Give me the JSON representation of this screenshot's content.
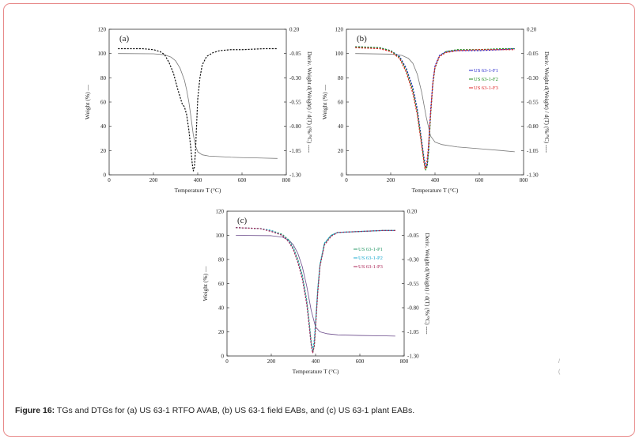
{
  "caption": {
    "label": "Figure 16:",
    "text": " TGs and DTGs for (a) US 63-1 RTFO AVAB, (b) US 63-1 field EABs, and (c) US 63-1 plant EABs."
  },
  "chart_data": [
    {
      "type": "line",
      "panel_label": "(a)",
      "xlabel": "Temperature T (°C)",
      "ylabel": "Weight (%) —",
      "y2label": "Deriv. Weight d(Weight) / d(T) (%/°C) ----",
      "xlim": [
        0,
        800
      ],
      "ylim": [
        0,
        120
      ],
      "y2lim": [
        -1.3,
        0.2
      ],
      "xticks": [
        "0",
        "200",
        "400",
        "600",
        "800"
      ],
      "yticks": [
        "0",
        "20",
        "40",
        "60",
        "80",
        "100",
        "120"
      ],
      "y2ticks": [
        "0.20",
        "-0.05",
        "-0.30",
        "-0.55",
        "-0.80",
        "-1.05",
        "-1.30"
      ],
      "series": [
        {
          "kind": "tg",
          "color": "#777777",
          "x": [
            40,
            200,
            250,
            280,
            300,
            320,
            340,
            350,
            360,
            370,
            380,
            390,
            400,
            420,
            450,
            500,
            550,
            600,
            650,
            700,
            760
          ],
          "y": [
            100,
            99.8,
            99,
            97,
            94,
            88,
            78,
            70,
            60,
            47,
            33,
            24,
            19,
            16.5,
            15.5,
            15,
            14.5,
            14.2,
            14,
            13.8,
            13.5
          ]
        },
        {
          "kind": "dtg",
          "color": "#111111",
          "x": [
            40,
            150,
            200,
            230,
            250,
            270,
            290,
            310,
            330,
            340,
            350,
            360,
            370,
            375,
            380,
            385,
            390,
            395,
            400,
            410,
            420,
            440,
            470,
            500,
            550,
            600,
            700,
            760
          ],
          "y": [
            0.0,
            0.0,
            -0.01,
            -0.03,
            -0.06,
            -0.14,
            -0.25,
            -0.42,
            -0.57,
            -0.6,
            -0.68,
            -0.84,
            -1.05,
            -1.18,
            -1.26,
            -1.22,
            -1.05,
            -0.78,
            -0.52,
            -0.3,
            -0.17,
            -0.08,
            -0.04,
            -0.02,
            -0.01,
            -0.01,
            0.0,
            0.0
          ]
        }
      ]
    },
    {
      "type": "line",
      "panel_label": "(b)",
      "xlabel": "Temperature T (°C)",
      "ylabel": "Weight (%) —",
      "y2label": "Deriv. Weight d(Weight) / d(T) (%/°C) ----",
      "xlim": [
        0,
        800
      ],
      "ylim": [
        0,
        120
      ],
      "y2lim": [
        -1.3,
        0.2
      ],
      "xticks": [
        "0",
        "200",
        "400",
        "600",
        "800"
      ],
      "yticks": [
        "0",
        "20",
        "40",
        "60",
        "80",
        "100",
        "120"
      ],
      "y2ticks": [
        "0.20",
        "-0.05",
        "-0.30",
        "-0.55",
        "-0.80",
        "-1.05",
        "-1.30"
      ],
      "legend": [
        "US 63-1-F1",
        "US 63-1-F2",
        "US 63-1-F3"
      ],
      "series": [
        {
          "kind": "tg",
          "color": "#777777",
          "x": [
            40,
            200,
            250,
            280,
            300,
            320,
            340,
            360,
            380,
            400,
            430,
            500,
            600,
            700,
            760
          ],
          "y": [
            100,
            99.5,
            98.5,
            96,
            92,
            83,
            68,
            48,
            32,
            27,
            25,
            23,
            21.5,
            20,
            19
          ]
        },
        {
          "kind": "dtg",
          "name": "US 63-1-F1",
          "color": "#2222cc",
          "x": [
            40,
            150,
            200,
            240,
            270,
            300,
            320,
            340,
            350,
            360,
            365,
            370,
            380,
            390,
            400,
            420,
            450,
            500,
            600,
            700,
            760
          ],
          "y": [
            0.02,
            0.01,
            -0.02,
            -0.08,
            -0.2,
            -0.4,
            -0.62,
            -0.95,
            -1.12,
            -1.22,
            -1.2,
            -1.05,
            -0.65,
            -0.35,
            -0.18,
            -0.07,
            -0.03,
            -0.02,
            -0.02,
            -0.01,
            0.0
          ]
        },
        {
          "kind": "dtg",
          "name": "US 63-1-F2",
          "color": "#1a8a1a",
          "x": [
            40,
            150,
            200,
            240,
            270,
            300,
            320,
            340,
            350,
            358,
            365,
            372,
            380,
            390,
            400,
            420,
            450,
            500,
            600,
            700,
            760
          ],
          "y": [
            0.02,
            0.01,
            -0.02,
            -0.09,
            -0.22,
            -0.43,
            -0.65,
            -0.98,
            -1.15,
            -1.25,
            -1.21,
            -1.05,
            -0.7,
            -0.38,
            -0.2,
            -0.08,
            -0.03,
            -0.01,
            -0.01,
            0.0,
            0.0
          ]
        },
        {
          "kind": "dtg",
          "name": "US 63-1-F3",
          "color": "#dd2222",
          "x": [
            40,
            150,
            200,
            240,
            270,
            300,
            320,
            340,
            350,
            355,
            362,
            370,
            380,
            390,
            400,
            420,
            450,
            500,
            600,
            700,
            760
          ],
          "y": [
            0.01,
            0.0,
            -0.03,
            -0.1,
            -0.24,
            -0.46,
            -0.68,
            -1.0,
            -1.17,
            -1.24,
            -1.2,
            -1.02,
            -0.67,
            -0.36,
            -0.19,
            -0.08,
            -0.04,
            -0.02,
            -0.01,
            -0.01,
            -0.01
          ]
        }
      ]
    },
    {
      "type": "line",
      "panel_label": "(c)",
      "xlabel": "Temperature T (°C)",
      "ylabel": "Weight (%) —",
      "y2label": "Deriv. Weight d(Weight) / d(T) (%/°C) ----",
      "xlim": [
        0,
        800
      ],
      "ylim": [
        0,
        120
      ],
      "y2lim": [
        -1.3,
        0.2
      ],
      "xticks": [
        "0",
        "200",
        "400",
        "600",
        "800"
      ],
      "yticks": [
        "0",
        "20",
        "40",
        "60",
        "80",
        "100",
        "120"
      ],
      "y2ticks": [
        "0.20",
        "-0.05",
        "-0.30",
        "-0.55",
        "-0.80",
        "-1.05",
        "-1.30"
      ],
      "legend": [
        "US 63-1-P1",
        "US 63-1-P2",
        "US 63-1-P3"
      ],
      "series": [
        {
          "kind": "tg",
          "color": "#6a4a8a",
          "x": [
            40,
            200,
            250,
            280,
            300,
            320,
            340,
            360,
            380,
            400,
            420,
            450,
            500,
            600,
            700,
            760
          ],
          "y": [
            100,
            99.7,
            98.5,
            96,
            92,
            85,
            74,
            58,
            38,
            24,
            20,
            18.5,
            17.5,
            17,
            16.7,
            16.5
          ]
        },
        {
          "kind": "dtg",
          "name": "US 63-1-P1",
          "color": "#2a9a6a",
          "x": [
            40,
            150,
            200,
            250,
            280,
            300,
            320,
            340,
            360,
            370,
            380,
            388,
            395,
            400,
            410,
            420,
            440,
            470,
            500,
            600,
            700,
            760
          ],
          "y": [
            0.03,
            0.02,
            0.0,
            -0.04,
            -0.1,
            -0.18,
            -0.3,
            -0.46,
            -0.72,
            -0.92,
            -1.15,
            -1.26,
            -1.18,
            -0.98,
            -0.62,
            -0.36,
            -0.14,
            -0.05,
            -0.02,
            -0.01,
            0.0,
            0.0
          ]
        },
        {
          "kind": "dtg",
          "name": "US 63-1-P2",
          "color": "#1aaad0",
          "x": [
            40,
            150,
            200,
            250,
            280,
            300,
            320,
            340,
            360,
            370,
            380,
            386,
            393,
            400,
            410,
            420,
            440,
            470,
            500,
            600,
            700,
            760
          ],
          "y": [
            0.03,
            0.02,
            0.0,
            -0.05,
            -0.11,
            -0.19,
            -0.32,
            -0.48,
            -0.74,
            -0.95,
            -1.17,
            -1.24,
            -1.16,
            -0.95,
            -0.6,
            -0.35,
            -0.13,
            -0.05,
            -0.02,
            -0.01,
            0.0,
            0.0
          ]
        },
        {
          "kind": "dtg",
          "name": "US 63-1-P3",
          "color": "#aa2255",
          "x": [
            40,
            150,
            200,
            250,
            280,
            300,
            320,
            340,
            360,
            370,
            380,
            387,
            394,
            400,
            410,
            420,
            440,
            470,
            500,
            600,
            700,
            760
          ],
          "y": [
            0.03,
            0.02,
            -0.01,
            -0.05,
            -0.12,
            -0.2,
            -0.33,
            -0.5,
            -0.76,
            -0.96,
            -1.18,
            -1.27,
            -1.2,
            -1.0,
            -0.64,
            -0.37,
            -0.15,
            -0.06,
            -0.02,
            -0.01,
            0.0,
            0.0
          ]
        }
      ]
    }
  ]
}
